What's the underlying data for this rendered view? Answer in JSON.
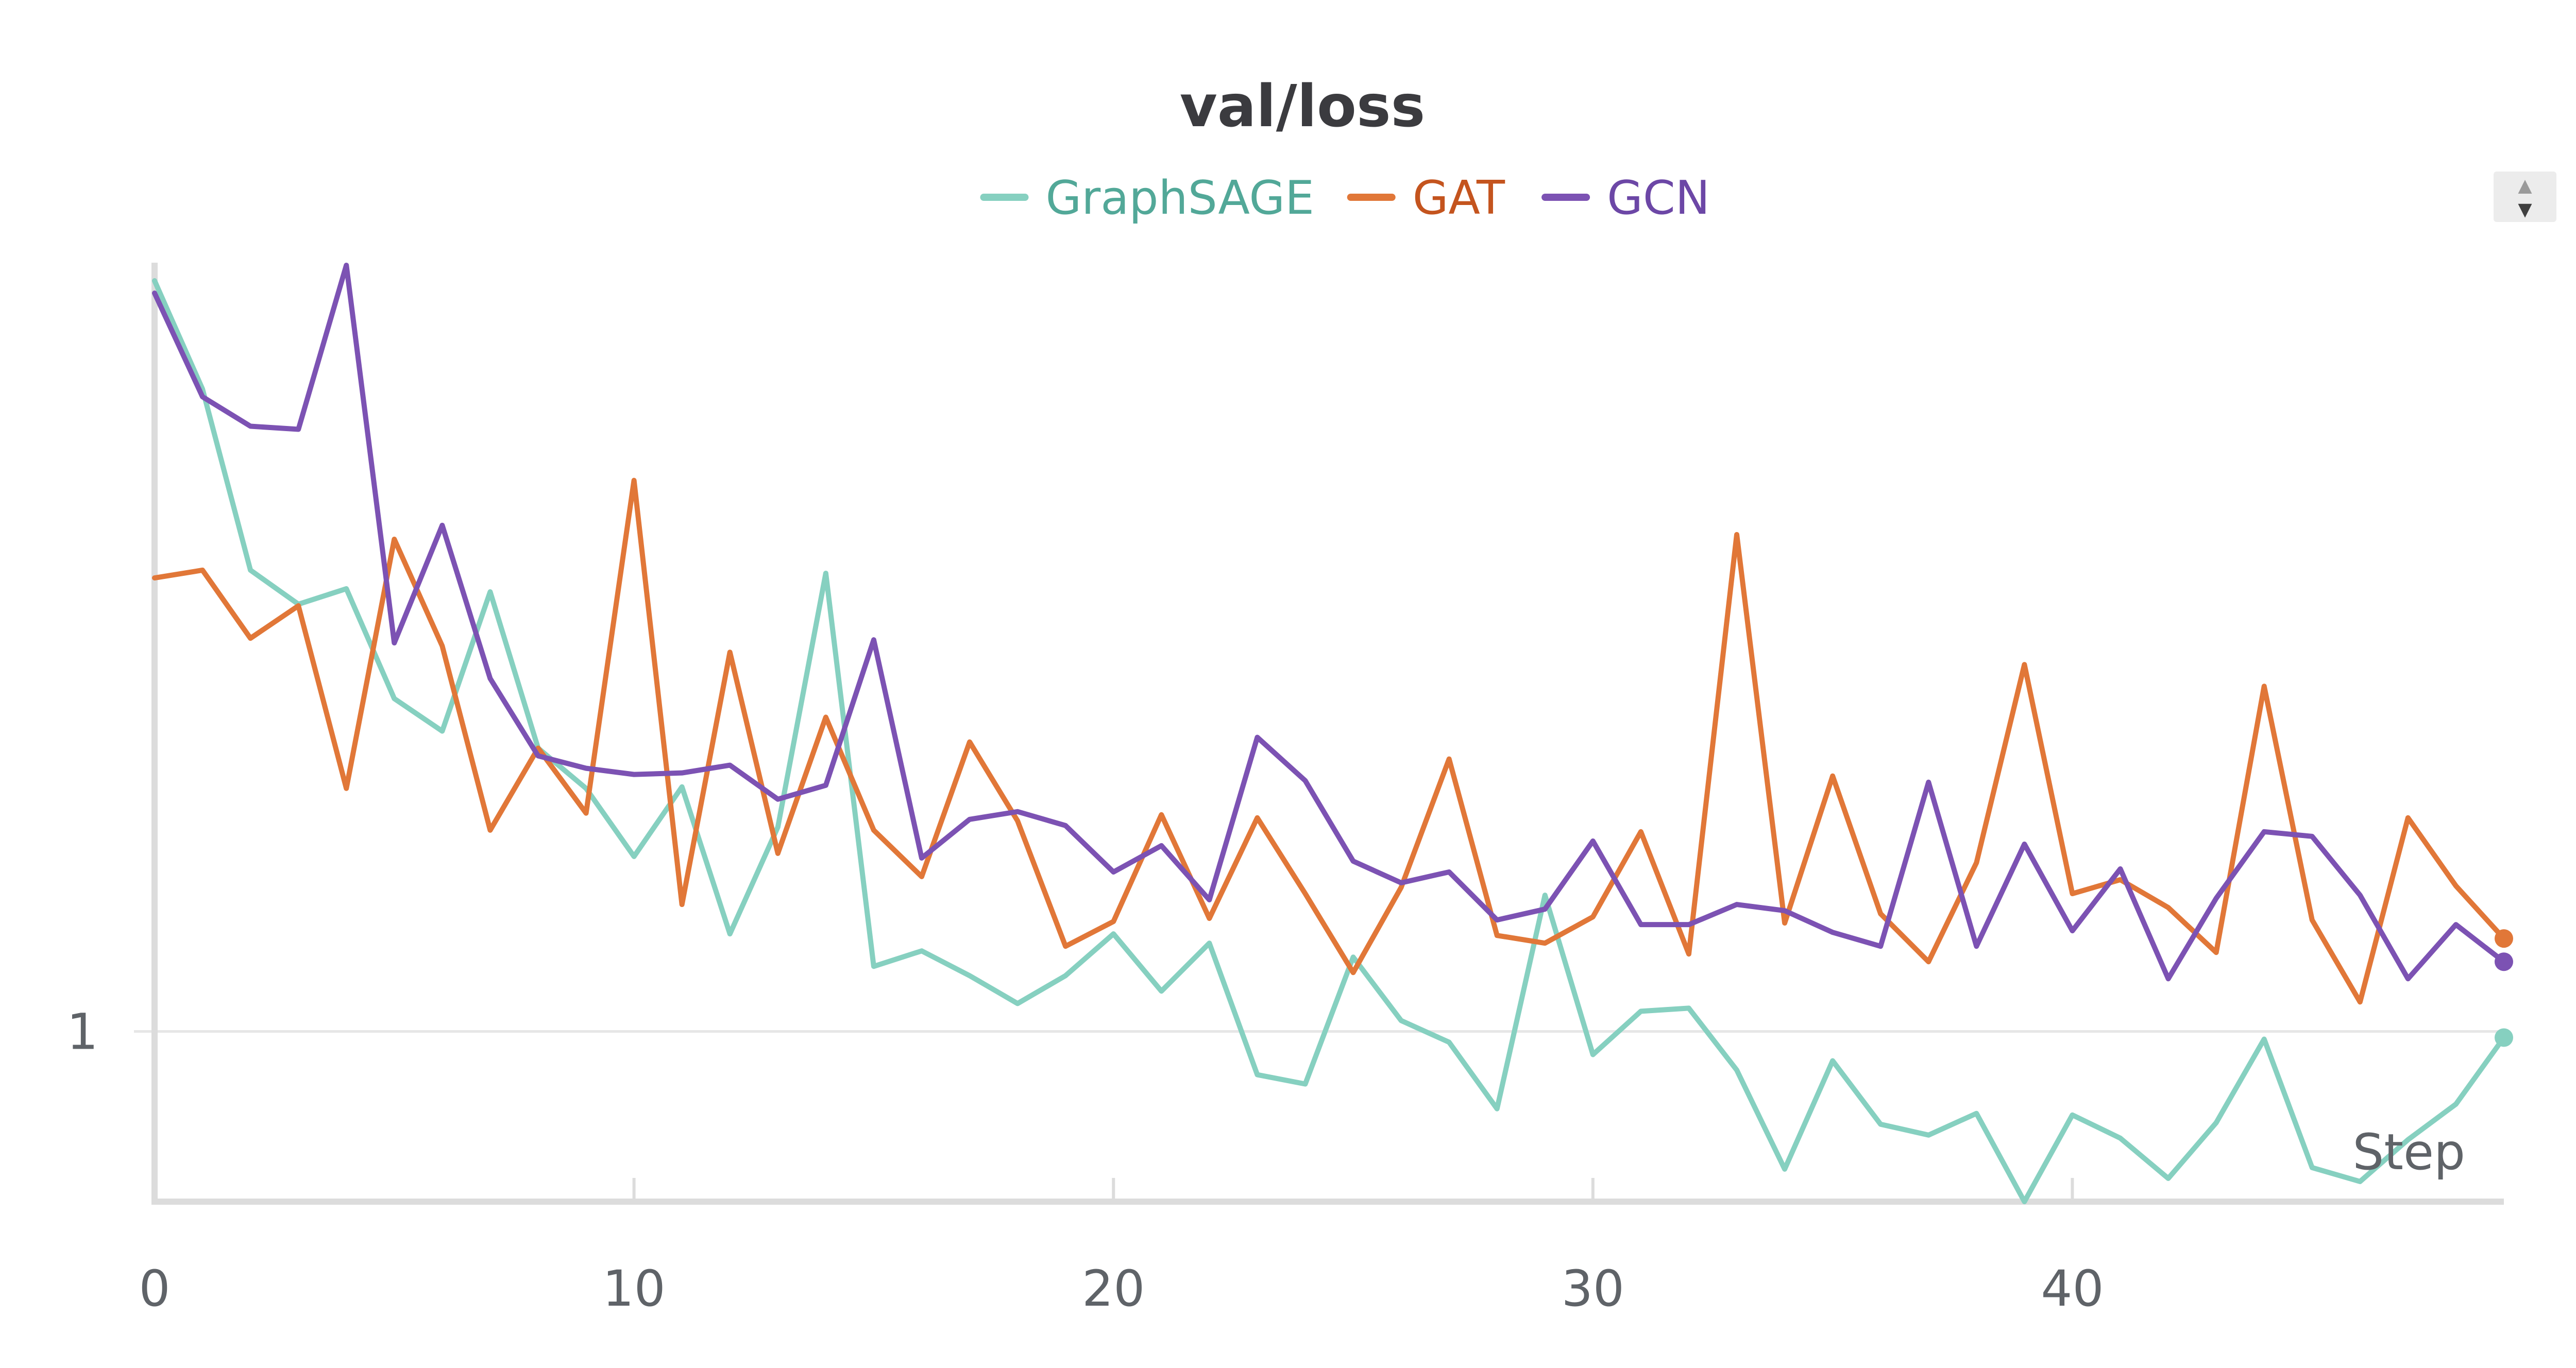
{
  "chart_data": {
    "type": "line",
    "title": "val/loss",
    "xlabel": "Step",
    "ylabel": "",
    "x_ticks": [
      0,
      10,
      20,
      30,
      40
    ],
    "y_ticks": [
      1
    ],
    "xlim": [
      0,
      49
    ],
    "ylim": [
      0.89,
      1.495
    ],
    "log_scale": false,
    "grid": "horizontal at y ticks",
    "legend_position": "top-center",
    "x": [
      0,
      1,
      2,
      3,
      4,
      5,
      6,
      7,
      8,
      9,
      10,
      11,
      12,
      13,
      14,
      15,
      16,
      17,
      18,
      19,
      20,
      21,
      22,
      23,
      24,
      25,
      26,
      27,
      28,
      29,
      30,
      31,
      32,
      33,
      34,
      35,
      36,
      37,
      38,
      39,
      40,
      41,
      42,
      43,
      44,
      45,
      46,
      47,
      48,
      49
    ],
    "series": [
      {
        "name": "GraphSAGE",
        "color": "#86d0c0",
        "values": [
          1.485,
          1.415,
          1.298,
          1.276,
          1.286,
          1.215,
          1.194,
          1.284,
          1.183,
          1.157,
          1.113,
          1.158,
          1.063,
          1.132,
          1.296,
          1.042,
          1.052,
          1.036,
          1.018,
          1.036,
          1.063,
          1.026,
          1.057,
          0.972,
          0.966,
          1.048,
          1.007,
          0.993,
          0.95,
          1.088,
          0.985,
          1.013,
          1.015,
          0.975,
          0.911,
          0.981,
          0.94,
          0.933,
          0.947,
          0.89,
          0.946,
          0.931,
          0.905,
          0.941,
          0.995,
          0.912,
          0.903,
          0.93,
          0.953,
          0.996
        ]
      },
      {
        "name": "GAT",
        "color": "#e17738",
        "values": [
          1.293,
          1.298,
          1.254,
          1.275,
          1.157,
          1.318,
          1.249,
          1.13,
          1.183,
          1.141,
          1.356,
          1.082,
          1.245,
          1.115,
          1.203,
          1.13,
          1.1,
          1.187,
          1.136,
          1.055,
          1.071,
          1.14,
          1.073,
          1.138,
          1.089,
          1.038,
          1.093,
          1.176,
          1.062,
          1.057,
          1.074,
          1.129,
          1.05,
          1.321,
          1.07,
          1.165,
          1.076,
          1.045,
          1.109,
          1.237,
          1.089,
          1.098,
          1.08,
          1.051,
          1.223,
          1.072,
          1.019,
          1.138,
          1.094,
          1.06
        ]
      },
      {
        "name": "GCN",
        "color": "#7c52b3",
        "values": [
          1.477,
          1.41,
          1.391,
          1.389,
          1.495,
          1.251,
          1.327,
          1.228,
          1.178,
          1.17,
          1.166,
          1.167,
          1.172,
          1.15,
          1.159,
          1.253,
          1.112,
          1.137,
          1.142,
          1.133,
          1.103,
          1.12,
          1.085,
          1.19,
          1.162,
          1.11,
          1.096,
          1.103,
          1.072,
          1.079,
          1.123,
          1.069,
          1.069,
          1.082,
          1.078,
          1.064,
          1.055,
          1.161,
          1.055,
          1.121,
          1.065,
          1.105,
          1.034,
          1.086,
          1.129,
          1.126,
          1.088,
          1.034,
          1.069,
          1.045
        ]
      }
    ]
  },
  "ui": {
    "scroll_control_up": "▲",
    "scroll_control_down": "▼"
  }
}
